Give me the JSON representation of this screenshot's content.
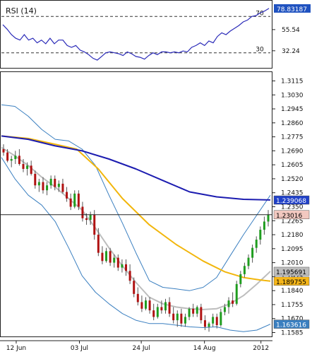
{
  "chart_data": [
    {
      "type": "line",
      "title": "RSI (14)",
      "ylim": [
        15,
        85
      ],
      "reference_lines": [
        {
          "label": "70",
          "value": 70
        },
        {
          "label": "30",
          "value": 30
        }
      ],
      "y_tick_labels": [
        {
          "label": "55.54",
          "value": 55.54
        },
        {
          "label": "32.24",
          "value": 32.24
        }
      ],
      "current_value_label": "78.83187",
      "current_value": 78.83187,
      "series": [
        {
          "values": [
            61,
            56,
            50,
            46,
            44,
            50,
            44,
            46,
            41,
            44,
            40,
            46,
            40,
            44,
            44,
            38,
            36,
            38,
            33,
            31,
            28,
            24,
            22,
            26,
            30,
            31,
            30,
            29,
            27,
            31,
            29,
            26,
            25,
            23,
            27,
            30,
            28,
            31,
            31,
            30,
            31,
            30,
            32,
            31,
            36,
            38,
            41,
            38,
            43,
            41,
            48,
            52,
            50,
            54,
            57,
            60,
            64,
            66,
            70,
            71,
            74,
            76,
            78.83
          ]
        }
      ],
      "colors": {
        "line": "#2a2ab8",
        "reference": "#333333",
        "badge": "#1f52c0"
      }
    },
    {
      "type": "candlestick",
      "x_tick_labels": [
        "12 Jun",
        "03 Jul",
        "24 Jul",
        "14 Aug",
        "2012"
      ],
      "ylim": [
        1.157,
        1.316
      ],
      "y_tick_labels": [
        "1.3115",
        "1.3030",
        "1.2945",
        "1.2860",
        "1.2775",
        "1.2690",
        "1.2605",
        "1.2520",
        "1.2435",
        "1.2350",
        "1.2265",
        "1.2180",
        "1.2095",
        "1.2010",
        "1.1925",
        "1.1840",
        "1.1755",
        "1.1670",
        "1.1585"
      ],
      "price_badges": [
        {
          "label": "1.239068",
          "value": 1.23907,
          "color": "#1f40c8",
          "text_color": "#ffffff"
        },
        {
          "label": "1.23016",
          "value": 1.23016,
          "color": "#f2c8c0",
          "text_color": "#000000"
        },
        {
          "label": "1.195691",
          "value": 1.19569,
          "color": "#bdbdbd",
          "text_color": "#000000"
        },
        {
          "label": "1.189755",
          "value": 1.18976,
          "color": "#f6b619",
          "text_color": "#000000"
        },
        {
          "label": "1.163616",
          "value": 1.16362,
          "color": "#3a7fc0",
          "text_color": "#ffffff"
        }
      ],
      "candles": [
        [
          1.27,
          1.273,
          1.266,
          1.268
        ],
        [
          1.268,
          1.27,
          1.262,
          1.263
        ],
        [
          1.263,
          1.266,
          1.259,
          1.264
        ],
        [
          1.264,
          1.269,
          1.261,
          1.266
        ],
        [
          1.266,
          1.27,
          1.26,
          1.261
        ],
        [
          1.261,
          1.264,
          1.256,
          1.258
        ],
        [
          1.258,
          1.262,
          1.254,
          1.26
        ],
        [
          1.26,
          1.263,
          1.254,
          1.255
        ],
        [
          1.255,
          1.257,
          1.246,
          1.248
        ],
        [
          1.248,
          1.252,
          1.244,
          1.25
        ],
        [
          1.25,
          1.253,
          1.243,
          1.245
        ],
        [
          1.245,
          1.25,
          1.242,
          1.248
        ],
        [
          1.248,
          1.254,
          1.246,
          1.252
        ],
        [
          1.252,
          1.254,
          1.245,
          1.247
        ],
        [
          1.247,
          1.251,
          1.244,
          1.249
        ],
        [
          1.249,
          1.252,
          1.243,
          1.244
        ],
        [
          1.244,
          1.247,
          1.238,
          1.24
        ],
        [
          1.24,
          1.243,
          1.233,
          1.235
        ],
        [
          1.235,
          1.245,
          1.234,
          1.243
        ],
        [
          1.243,
          1.245,
          1.233,
          1.235
        ],
        [
          1.235,
          1.238,
          1.226,
          1.228
        ],
        [
          1.228,
          1.231,
          1.224,
          1.227
        ],
        [
          1.227,
          1.232,
          1.224,
          1.23
        ],
        [
          1.23,
          1.233,
          1.215,
          1.218
        ],
        [
          1.218,
          1.222,
          1.205,
          1.207
        ],
        [
          1.207,
          1.211,
          1.2,
          1.202
        ],
        [
          1.202,
          1.21,
          1.201,
          1.208
        ],
        [
          1.208,
          1.21,
          1.199,
          1.201
        ],
        [
          1.201,
          1.206,
          1.198,
          1.204
        ],
        [
          1.204,
          1.206,
          1.196,
          1.198
        ],
        [
          1.198,
          1.203,
          1.195,
          1.2
        ],
        [
          1.2,
          1.203,
          1.193,
          1.196
        ],
        [
          1.196,
          1.2,
          1.188,
          1.19
        ],
        [
          1.19,
          1.192,
          1.18,
          1.182
        ],
        [
          1.182,
          1.186,
          1.175,
          1.177
        ],
        [
          1.177,
          1.181,
          1.171,
          1.173
        ],
        [
          1.173,
          1.18,
          1.172,
          1.178
        ],
        [
          1.178,
          1.18,
          1.17,
          1.172
        ],
        [
          1.172,
          1.176,
          1.166,
          1.168
        ],
        [
          1.168,
          1.176,
          1.167,
          1.174
        ],
        [
          1.174,
          1.178,
          1.17,
          1.172
        ],
        [
          1.172,
          1.179,
          1.17,
          1.177
        ],
        [
          1.177,
          1.18,
          1.168,
          1.17
        ],
        [
          1.17,
          1.174,
          1.164,
          1.166
        ],
        [
          1.166,
          1.172,
          1.162,
          1.17
        ],
        [
          1.17,
          1.173,
          1.162,
          1.164
        ],
        [
          1.164,
          1.17,
          1.162,
          1.168
        ],
        [
          1.168,
          1.174,
          1.166,
          1.173
        ],
        [
          1.173,
          1.176,
          1.168,
          1.17
        ],
        [
          1.17,
          1.175,
          1.168,
          1.174
        ],
        [
          1.174,
          1.176,
          1.164,
          1.166
        ],
        [
          1.166,
          1.169,
          1.16,
          1.162
        ],
        [
          1.162,
          1.165,
          1.159,
          1.164
        ],
        [
          1.164,
          1.17,
          1.162,
          1.168
        ],
        [
          1.168,
          1.17,
          1.161,
          1.163
        ],
        [
          1.163,
          1.173,
          1.162,
          1.171
        ],
        [
          1.171,
          1.176,
          1.169,
          1.174
        ],
        [
          1.174,
          1.18,
          1.17,
          1.178
        ],
        [
          1.178,
          1.183,
          1.174,
          1.176
        ],
        [
          1.176,
          1.19,
          1.175,
          1.188
        ],
        [
          1.188,
          1.196,
          1.186,
          1.194
        ],
        [
          1.194,
          1.201,
          1.192,
          1.199
        ],
        [
          1.199,
          1.206,
          1.197,
          1.204
        ],
        [
          1.204,
          1.212,
          1.201,
          1.21
        ],
        [
          1.21,
          1.217,
          1.207,
          1.215
        ],
        [
          1.215,
          1.223,
          1.212,
          1.221
        ],
        [
          1.221,
          1.229,
          1.218,
          1.226
        ],
        [
          1.226,
          1.233,
          1.223,
          1.2302
        ]
      ],
      "lines": [
        {
          "key": "blue_ma",
          "color": "#1c1cb0",
          "width": 2,
          "points": [
            [
              0,
              1.278
            ],
            [
              10,
              1.276
            ],
            [
              20,
              1.272
            ],
            [
              30,
              1.269
            ],
            [
              40,
              1.264
            ],
            [
              50,
              1.258
            ],
            [
              60,
              1.251
            ],
            [
              70,
              1.244
            ],
            [
              80,
              1.241
            ],
            [
              90,
              1.2395
            ],
            [
              100,
              1.2391
            ]
          ]
        },
        {
          "key": "yellow_ma",
          "color": "#f2b60c",
          "width": 2,
          "points": [
            [
              0,
              1.278
            ],
            [
              10,
              1.2765
            ],
            [
              20,
              1.273
            ],
            [
              28,
              1.27
            ],
            [
              36,
              1.258
            ],
            [
              45,
              1.24
            ],
            [
              55,
              1.224
            ],
            [
              65,
              1.212
            ],
            [
              75,
              1.202
            ],
            [
              83,
              1.1955
            ],
            [
              90,
              1.192
            ],
            [
              96,
              1.1905
            ],
            [
              100,
              1.1898
            ]
          ]
        },
        {
          "key": "gray_mid",
          "color": "#bdbdbd",
          "width": 2,
          "points": [
            [
              0,
              1.271
            ],
            [
              5,
              1.266
            ],
            [
              10,
              1.26
            ],
            [
              15,
              1.253
            ],
            [
              20,
              1.247
            ],
            [
              25,
              1.24
            ],
            [
              30,
              1.233
            ],
            [
              35,
              1.222
            ],
            [
              40,
              1.21
            ],
            [
              45,
              1.199
            ],
            [
              50,
              1.189
            ],
            [
              55,
              1.18
            ],
            [
              60,
              1.176
            ],
            [
              65,
              1.174
            ],
            [
              70,
              1.173
            ],
            [
              75,
              1.1725
            ],
            [
              80,
              1.173
            ],
            [
              85,
              1.176
            ],
            [
              90,
              1.181
            ],
            [
              95,
              1.188
            ],
            [
              100,
              1.1957
            ]
          ]
        },
        {
          "key": "bb_upper",
          "color": "#3a7fc0",
          "width": 1,
          "points": [
            [
              0,
              1.297
            ],
            [
              5,
              1.296
            ],
            [
              10,
              1.29
            ],
            [
              15,
              1.282
            ],
            [
              20,
              1.276
            ],
            [
              25,
              1.275
            ],
            [
              30,
              1.27
            ],
            [
              35,
              1.26
            ],
            [
              40,
              1.242
            ],
            [
              45,
              1.225
            ],
            [
              50,
              1.207
            ],
            [
              55,
              1.19
            ],
            [
              60,
              1.186
            ],
            [
              65,
              1.185
            ],
            [
              70,
              1.184
            ],
            [
              75,
              1.186
            ],
            [
              80,
              1.192
            ],
            [
              85,
              1.205
            ],
            [
              90,
              1.218
            ],
            [
              95,
              1.23
            ],
            [
              100,
              1.242
            ]
          ]
        },
        {
          "key": "bb_lower",
          "color": "#3a7fc0",
          "width": 1,
          "points": [
            [
              0,
              1.265
            ],
            [
              5,
              1.252
            ],
            [
              10,
              1.242
            ],
            [
              15,
              1.236
            ],
            [
              20,
              1.226
            ],
            [
              25,
              1.21
            ],
            [
              30,
              1.193
            ],
            [
              35,
              1.183
            ],
            [
              40,
              1.176
            ],
            [
              45,
              1.17
            ],
            [
              50,
              1.166
            ],
            [
              55,
              1.164
            ],
            [
              60,
              1.164
            ],
            [
              65,
              1.163
            ],
            [
              70,
              1.162
            ],
            [
              75,
              1.1615
            ],
            [
              80,
              1.162
            ],
            [
              85,
              1.16
            ],
            [
              90,
              1.159
            ],
            [
              95,
              1.16
            ],
            [
              100,
              1.1636
            ]
          ]
        }
      ],
      "current_price_line": 1.23016,
      "colors": {
        "candle_up": "#1f9d1f",
        "candle_down": "#b01212",
        "wick": "#555555",
        "grid": "#e0e0e0"
      }
    }
  ]
}
